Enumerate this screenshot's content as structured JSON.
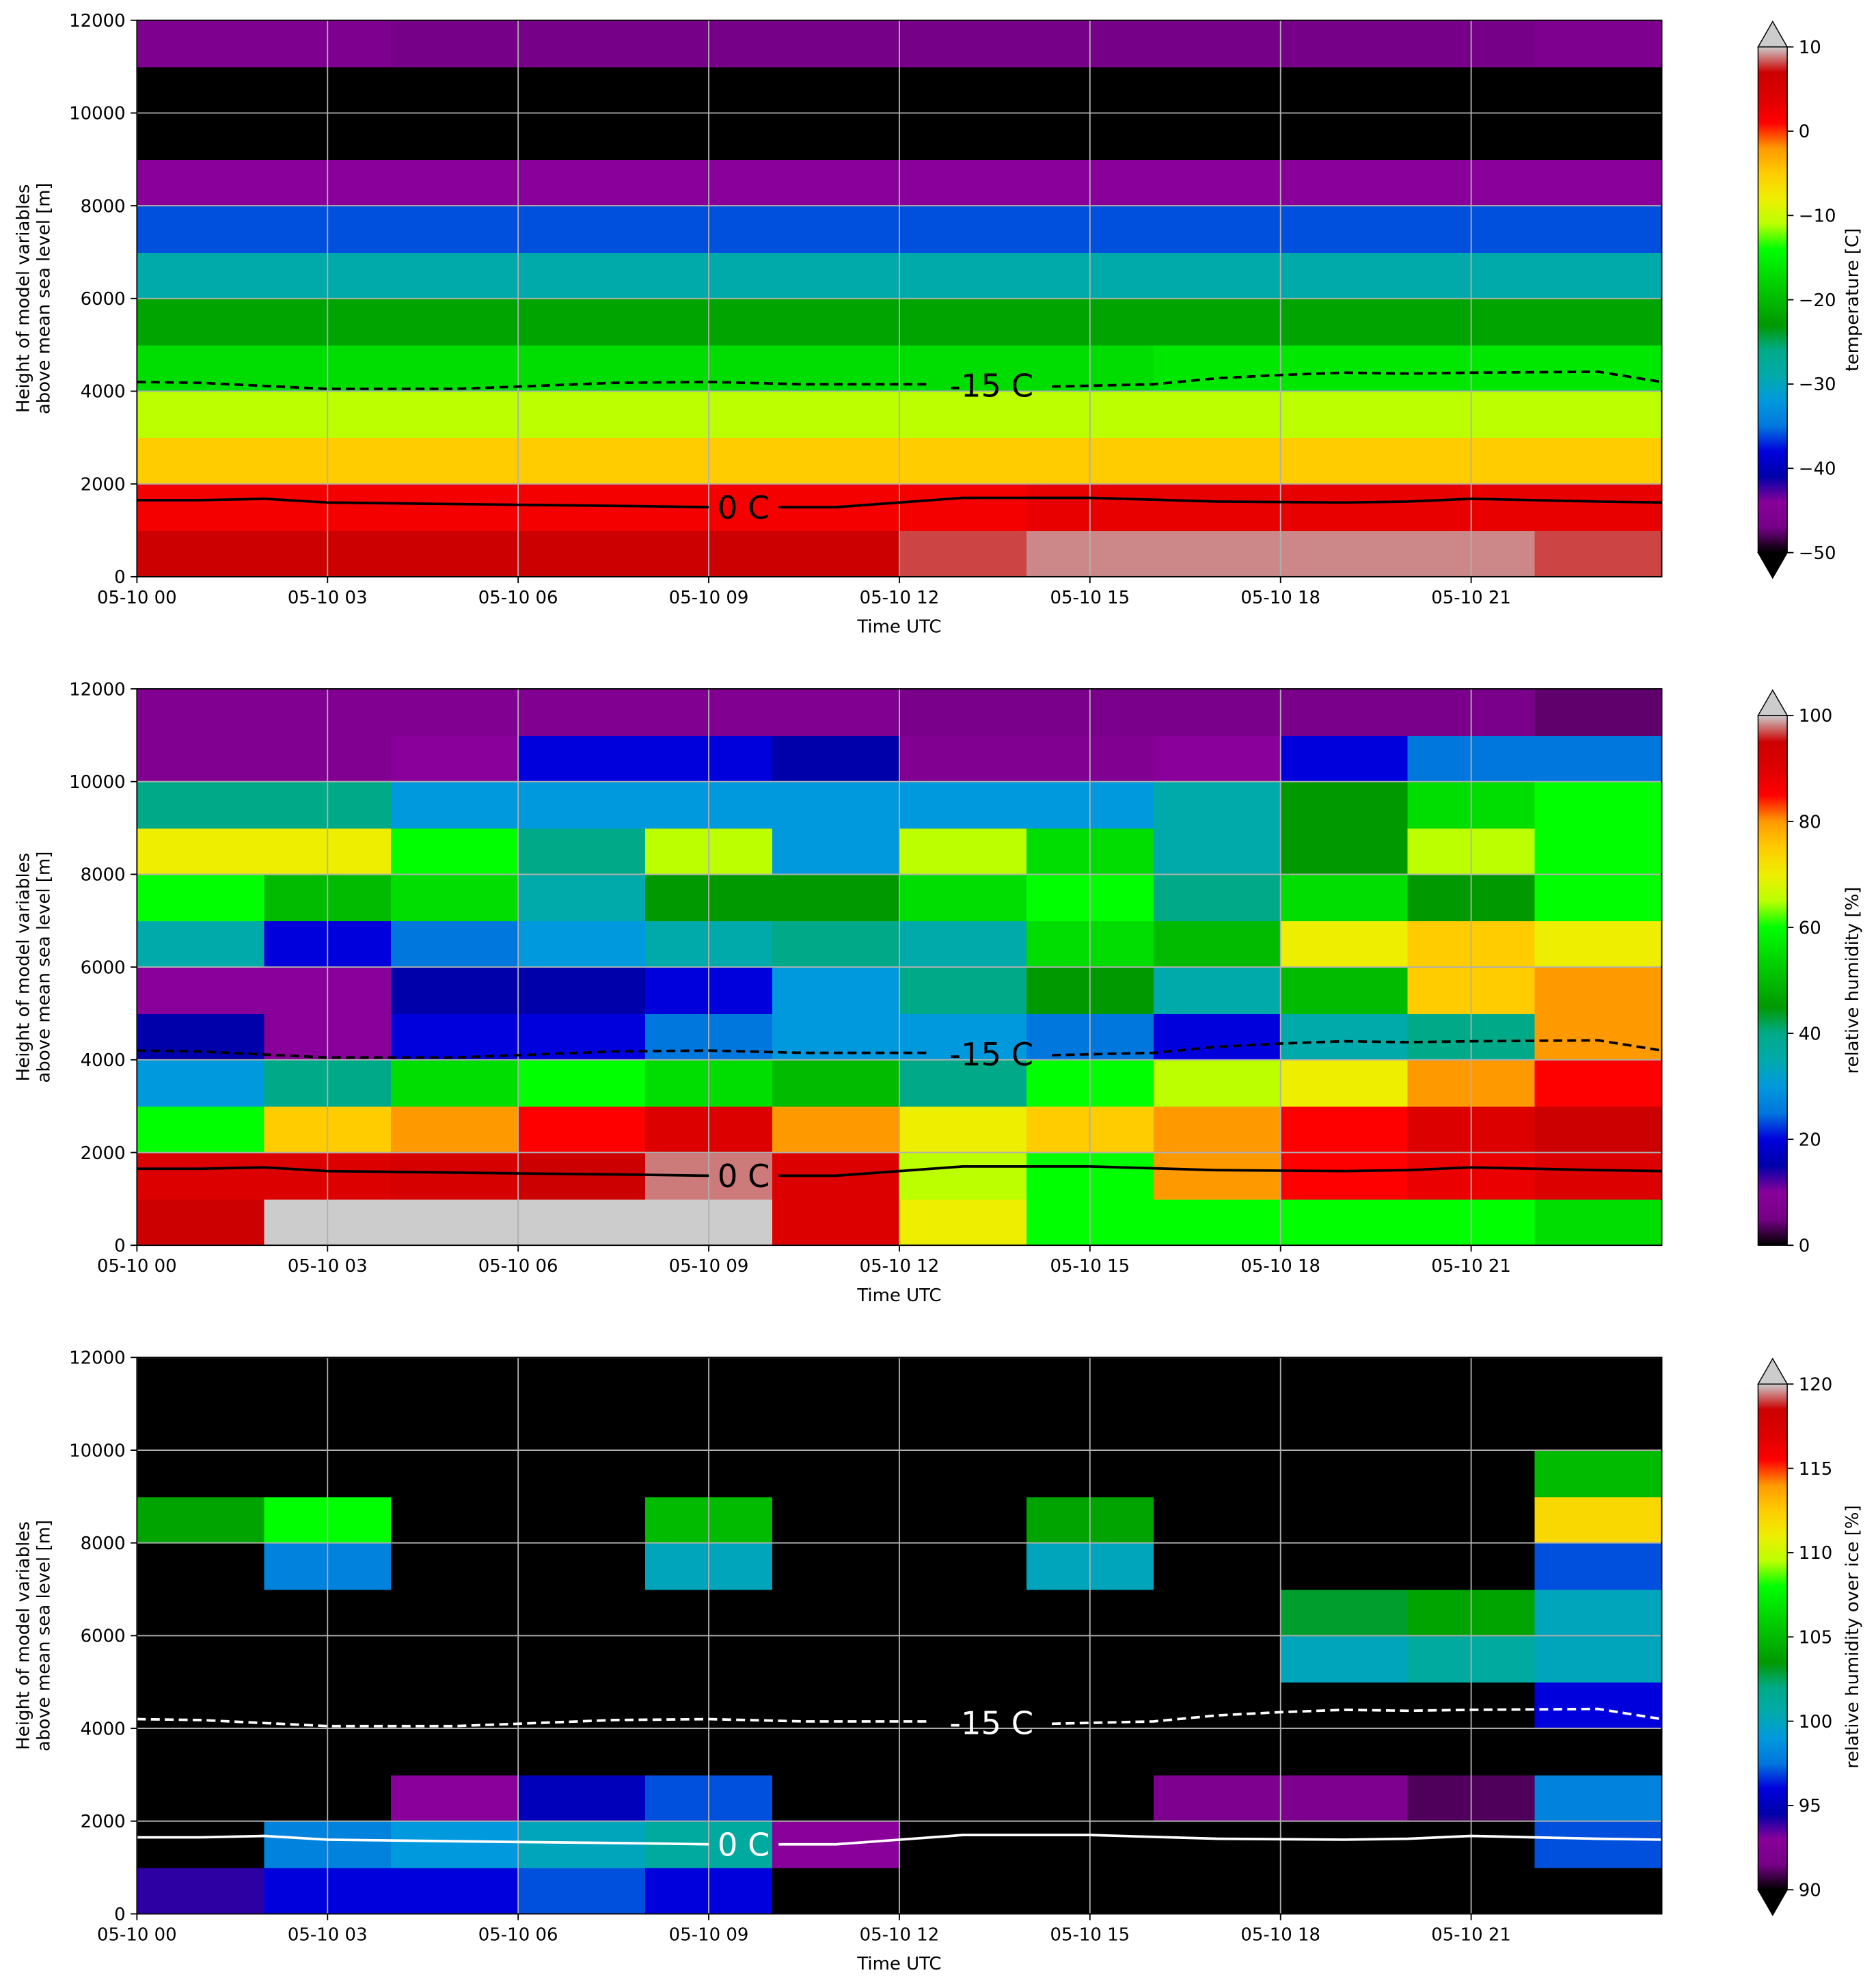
{
  "chart_data": [
    {
      "type": "heatmap",
      "xlabel": "Time UTC",
      "ylabel": [
        "Height of model variables",
        "above mean sea level [m]"
      ],
      "xlim": [
        0,
        24
      ],
      "ylim": [
        0,
        12000
      ],
      "grid": true,
      "xticks": [
        {
          "value": 0,
          "label": "05-10 00"
        },
        {
          "value": 3,
          "label": "05-10 03"
        },
        {
          "value": 6,
          "label": "05-10 06"
        },
        {
          "value": 9,
          "label": "05-10 09"
        },
        {
          "value": 12,
          "label": "05-10 12"
        },
        {
          "value": 15,
          "label": "05-10 15"
        },
        {
          "value": 18,
          "label": "05-10 18"
        },
        {
          "value": 21,
          "label": "05-10 21"
        }
      ],
      "yticks": [
        0,
        2000,
        4000,
        6000,
        8000,
        10000,
        12000
      ],
      "x_edges": [
        0,
        2,
        4,
        6,
        8,
        10,
        12,
        14,
        16,
        18,
        20,
        22,
        24
      ],
      "y_edges": [
        0,
        1000,
        2000,
        3000,
        4000,
        5000,
        6000,
        7000,
        8000,
        9000,
        10000,
        11000,
        12000
      ],
      "z": [
        [
          7,
          7,
          7,
          7,
          7,
          7,
          8,
          9,
          9,
          9,
          9,
          8
        ],
        [
          2,
          2,
          2,
          2,
          2,
          2,
          2,
          3,
          3,
          3,
          3,
          3
        ],
        [
          -5,
          -5,
          -5,
          -5,
          -5,
          -5,
          -5,
          -5,
          -5,
          -5,
          -5,
          -5
        ],
        [
          -11,
          -11,
          -11,
          -11,
          -11,
          -11,
          -11,
          -11,
          -11,
          -11,
          -11,
          -11
        ],
        [
          -17,
          -17,
          -17,
          -17,
          -17,
          -17,
          -17,
          -17,
          -16,
          -16,
          -16,
          -16
        ],
        [
          -22,
          -22,
          -22,
          -22,
          -22,
          -22,
          -22,
          -22,
          -22,
          -22,
          -22,
          -22
        ],
        [
          -29,
          -29,
          -29,
          -29,
          -29,
          -29,
          -29,
          -29,
          -29,
          -29,
          -29,
          -29
        ],
        [
          -36,
          -36,
          -36,
          -36,
          -36,
          -36,
          -36,
          -36,
          -36,
          -36,
          -36,
          -36
        ],
        [
          -44,
          -44,
          -44,
          -44,
          -44,
          -44,
          -44,
          -44,
          -44,
          -44,
          -44,
          -44
        ],
        [
          -52,
          -52,
          -52,
          -52,
          -52,
          -52,
          -52,
          -52,
          -52,
          -52,
          -52,
          -52
        ],
        [
          -51,
          -51,
          -51,
          -51,
          -51,
          -51,
          -51,
          -51,
          -51,
          -51,
          -51,
          -51
        ],
        [
          -46,
          -46,
          -47,
          -47,
          -47,
          -47,
          -47,
          -47,
          -47,
          -47,
          -47,
          -46
        ]
      ],
      "colorbar": {
        "label": "temperature [C]",
        "clim": [
          -50,
          10
        ],
        "extend": "both",
        "under": "#000000",
        "over": "#cccccc",
        "colormap": [
          "#000000",
          "#770088",
          "#880099",
          "#0000aa",
          "#0000dd",
          "#0077dd",
          "#0099dd",
          "#00aaaa",
          "#00aa88",
          "#009900",
          "#00bb00",
          "#00dd00",
          "#00ff00",
          "#bbff00",
          "#eeee00",
          "#ffcc00",
          "#ff9900",
          "#ff0000",
          "#dd0000",
          "#cc0000",
          "#cccccc"
        ],
        "ticks": [
          {
            "value": 10,
            "label": "10"
          },
          {
            "value": 0,
            "label": "0"
          },
          {
            "value": -10,
            "label": "−10"
          },
          {
            "value": -20,
            "label": "−20"
          },
          {
            "value": -30,
            "label": "−30"
          },
          {
            "value": -40,
            "label": "−40"
          },
          {
            "value": -50,
            "label": "−50"
          }
        ]
      },
      "contour_color": "#000000",
      "contours": [
        {
          "label": "-15 C",
          "style": "dashed",
          "x": [
            0,
            1,
            3,
            5,
            6,
            7.5,
            9,
            10.5,
            12.5,
            null,
            14.4,
            16,
            17,
            18,
            19,
            20,
            21,
            23,
            24
          ],
          "values": [
            4200,
            4180,
            4050,
            4050,
            4100,
            4180,
            4200,
            4150,
            4150,
            null,
            4100,
            4150,
            4280,
            4350,
            4400,
            4380,
            4400,
            4420,
            4200
          ]
        },
        {
          "label": "0 C",
          "style": "solid",
          "x": [
            0,
            1,
            2,
            3,
            6,
            8,
            9,
            null,
            10.1,
            11,
            13,
            15,
            17,
            19,
            20,
            21,
            23,
            24
          ],
          "values": [
            1650,
            1650,
            1680,
            1600,
            1550,
            1520,
            1500,
            null,
            1500,
            1500,
            1700,
            1700,
            1620,
            1600,
            1620,
            1680,
            1620,
            1600
          ]
        }
      ]
    },
    {
      "type": "heatmap",
      "xlabel": "Time UTC",
      "ylabel": [
        "Height of model variables",
        "above mean sea level [m]"
      ],
      "xlim": [
        0,
        24
      ],
      "ylim": [
        0,
        12000
      ],
      "grid": true,
      "xticks": [
        {
          "value": 0,
          "label": "05-10 00"
        },
        {
          "value": 3,
          "label": "05-10 03"
        },
        {
          "value": 6,
          "label": "05-10 06"
        },
        {
          "value": 9,
          "label": "05-10 09"
        },
        {
          "value": 12,
          "label": "05-10 12"
        },
        {
          "value": 15,
          "label": "05-10 15"
        },
        {
          "value": 18,
          "label": "05-10 18"
        },
        {
          "value": 21,
          "label": "05-10 21"
        }
      ],
      "yticks": [
        0,
        2000,
        4000,
        6000,
        8000,
        10000,
        12000
      ],
      "x_edges": [
        0,
        2,
        4,
        6,
        8,
        10,
        12,
        14,
        16,
        18,
        20,
        22,
        24
      ],
      "y_edges": [
        0,
        1000,
        2000,
        3000,
        4000,
        5000,
        6000,
        7000,
        8000,
        9000,
        10000,
        11000,
        12000
      ],
      "z": [
        [
          95,
          100,
          100,
          100,
          100,
          90,
          70,
          60,
          60,
          60,
          60,
          55
        ],
        [
          90,
          90,
          92,
          95,
          98,
          90,
          65,
          60,
          80,
          85,
          88,
          90
        ],
        [
          60,
          75,
          80,
          85,
          90,
          80,
          70,
          75,
          80,
          85,
          90,
          95
        ],
        [
          30,
          40,
          55,
          60,
          55,
          50,
          40,
          60,
          65,
          70,
          80,
          85
        ],
        [
          15,
          10,
          20,
          20,
          25,
          30,
          30,
          25,
          20,
          35,
          40,
          80
        ],
        [
          10,
          10,
          15,
          15,
          20,
          30,
          40,
          45,
          35,
          50,
          75,
          80
        ],
        [
          35,
          20,
          25,
          30,
          35,
          40,
          35,
          55,
          50,
          70,
          75,
          70
        ],
        [
          60,
          50,
          55,
          35,
          45,
          45,
          55,
          60,
          40,
          55,
          45,
          60
        ],
        [
          70,
          70,
          60,
          40,
          65,
          30,
          65,
          55,
          35,
          45,
          65,
          60
        ],
        [
          40,
          40,
          30,
          30,
          30,
          30,
          30,
          30,
          35,
          45,
          55,
          60
        ],
        [
          8,
          8,
          10,
          20,
          20,
          15,
          8,
          8,
          10,
          20,
          25,
          25
        ],
        [
          8,
          8,
          8,
          8,
          8,
          8,
          6,
          6,
          6,
          6,
          6,
          4
        ]
      ],
      "colorbar": {
        "label": "relative humidity [%]",
        "clim": [
          0,
          100
        ],
        "extend": "max",
        "under": "#000000",
        "over": "#cccccc",
        "colormap": [
          "#000000",
          "#770088",
          "#880099",
          "#0000aa",
          "#0000dd",
          "#0077dd",
          "#0099dd",
          "#00aaaa",
          "#00aa88",
          "#009900",
          "#00bb00",
          "#00dd00",
          "#00ff00",
          "#bbff00",
          "#eeee00",
          "#ffcc00",
          "#ff9900",
          "#ff0000",
          "#dd0000",
          "#cc0000",
          "#cccccc"
        ],
        "ticks": [
          0,
          20,
          40,
          60,
          80,
          100
        ]
      },
      "contour_color": "#000000",
      "contours": [
        {
          "label": "-15 C",
          "style": "dashed",
          "x": [
            0,
            1,
            3,
            5,
            6,
            7.5,
            9,
            10.5,
            12.5,
            null,
            14.4,
            16,
            17,
            18,
            19,
            20,
            21,
            23,
            24
          ],
          "values": [
            4200,
            4180,
            4050,
            4050,
            4100,
            4180,
            4200,
            4150,
            4150,
            null,
            4100,
            4150,
            4280,
            4350,
            4400,
            4380,
            4400,
            4420,
            4200
          ]
        },
        {
          "label": "0 C",
          "style": "solid",
          "x": [
            0,
            1,
            2,
            3,
            6,
            8,
            9,
            null,
            10.1,
            11,
            13,
            15,
            17,
            19,
            20,
            21,
            23,
            24
          ],
          "values": [
            1650,
            1650,
            1680,
            1600,
            1550,
            1520,
            1500,
            null,
            1500,
            1500,
            1700,
            1700,
            1620,
            1600,
            1620,
            1680,
            1620,
            1600
          ]
        }
      ]
    },
    {
      "type": "heatmap",
      "xlabel": "Time UTC",
      "ylabel": [
        "Height of model variables",
        "above mean sea level [m]"
      ],
      "xlim": [
        0,
        24
      ],
      "ylim": [
        0,
        12000
      ],
      "grid": true,
      "xticks": [
        {
          "value": 0,
          "label": "05-10 00"
        },
        {
          "value": 3,
          "label": "05-10 03"
        },
        {
          "value": 6,
          "label": "05-10 06"
        },
        {
          "value": 9,
          "label": "05-10 09"
        },
        {
          "value": 12,
          "label": "05-10 12"
        },
        {
          "value": 15,
          "label": "05-10 15"
        },
        {
          "value": 18,
          "label": "05-10 18"
        },
        {
          "value": 21,
          "label": "05-10 21"
        }
      ],
      "yticks": [
        0,
        2000,
        4000,
        6000,
        8000,
        10000,
        12000
      ],
      "x_edges": [
        0,
        2,
        4,
        6,
        8,
        10,
        12,
        14,
        16,
        18,
        20,
        22,
        24
      ],
      "y_edges": [
        0,
        1000,
        2000,
        3000,
        4000,
        5000,
        6000,
        7000,
        8000,
        9000,
        10000,
        11000,
        12000
      ],
      "z": [
        [
          94,
          96,
          96,
          97,
          96,
          80,
          80,
          80,
          80,
          80,
          80,
          80
        ],
        [
          80,
          98,
          99,
          100,
          101,
          93,
          80,
          80,
          80,
          80,
          80,
          97
        ],
        [
          80,
          80,
          93,
          95,
          97,
          80,
          80,
          80,
          92,
          92,
          91,
          98
        ],
        [
          80,
          80,
          80,
          80,
          80,
          80,
          80,
          80,
          80,
          80,
          80,
          80
        ],
        [
          80,
          80,
          80,
          80,
          80,
          80,
          80,
          80,
          80,
          80,
          80,
          96
        ],
        [
          80,
          80,
          80,
          80,
          80,
          80,
          80,
          80,
          80,
          100,
          101,
          100
        ],
        [
          80,
          80,
          80,
          80,
          80,
          80,
          80,
          80,
          80,
          103,
          104,
          100
        ],
        [
          80,
          98,
          80,
          80,
          100,
          80,
          80,
          100,
          80,
          80,
          80,
          97
        ],
        [
          104,
          108,
          80,
          80,
          105,
          80,
          80,
          104,
          80,
          80,
          80,
          112
        ],
        [
          80,
          80,
          80,
          80,
          80,
          80,
          80,
          80,
          80,
          80,
          80,
          105
        ],
        [
          80,
          80,
          80,
          80,
          80,
          80,
          80,
          80,
          80,
          80,
          80,
          80
        ],
        [
          80,
          80,
          80,
          80,
          80,
          80,
          80,
          80,
          80,
          80,
          80,
          80
        ]
      ],
      "colorbar": {
        "label": "relative humidity over ice [%]",
        "clim": [
          90,
          120
        ],
        "extend": "both",
        "under": "#000000",
        "over": "#cccccc",
        "colormap": [
          "#000000",
          "#770088",
          "#880099",
          "#0000aa",
          "#0000dd",
          "#0077dd",
          "#0099dd",
          "#00aaaa",
          "#00aa88",
          "#009900",
          "#00bb00",
          "#00dd00",
          "#00ff00",
          "#bbff00",
          "#eeee00",
          "#ffcc00",
          "#ff9900",
          "#ff0000",
          "#dd0000",
          "#cc0000",
          "#cccccc"
        ],
        "ticks": [
          90,
          95,
          100,
          105,
          110,
          115,
          120
        ]
      },
      "contour_color": "#ffffff",
      "contours": [
        {
          "label": "-15 C",
          "style": "dashed",
          "x": [
            0,
            1,
            3,
            5,
            6,
            7.5,
            9,
            10.5,
            12.5,
            null,
            14.4,
            16,
            17,
            18,
            19,
            20,
            21,
            23,
            24
          ],
          "values": [
            4200,
            4180,
            4050,
            4050,
            4100,
            4180,
            4200,
            4150,
            4150,
            null,
            4100,
            4150,
            4280,
            4350,
            4400,
            4380,
            4400,
            4420,
            4200
          ]
        },
        {
          "label": "0 C",
          "style": "solid",
          "x": [
            0,
            1,
            2,
            3,
            6,
            8,
            9,
            null,
            10.1,
            11,
            13,
            15,
            17,
            19,
            20,
            21,
            23,
            24
          ],
          "values": [
            1650,
            1650,
            1680,
            1600,
            1550,
            1520,
            1500,
            null,
            1500,
            1500,
            1700,
            1700,
            1620,
            1600,
            1620,
            1680,
            1620,
            1600
          ]
        }
      ]
    }
  ]
}
